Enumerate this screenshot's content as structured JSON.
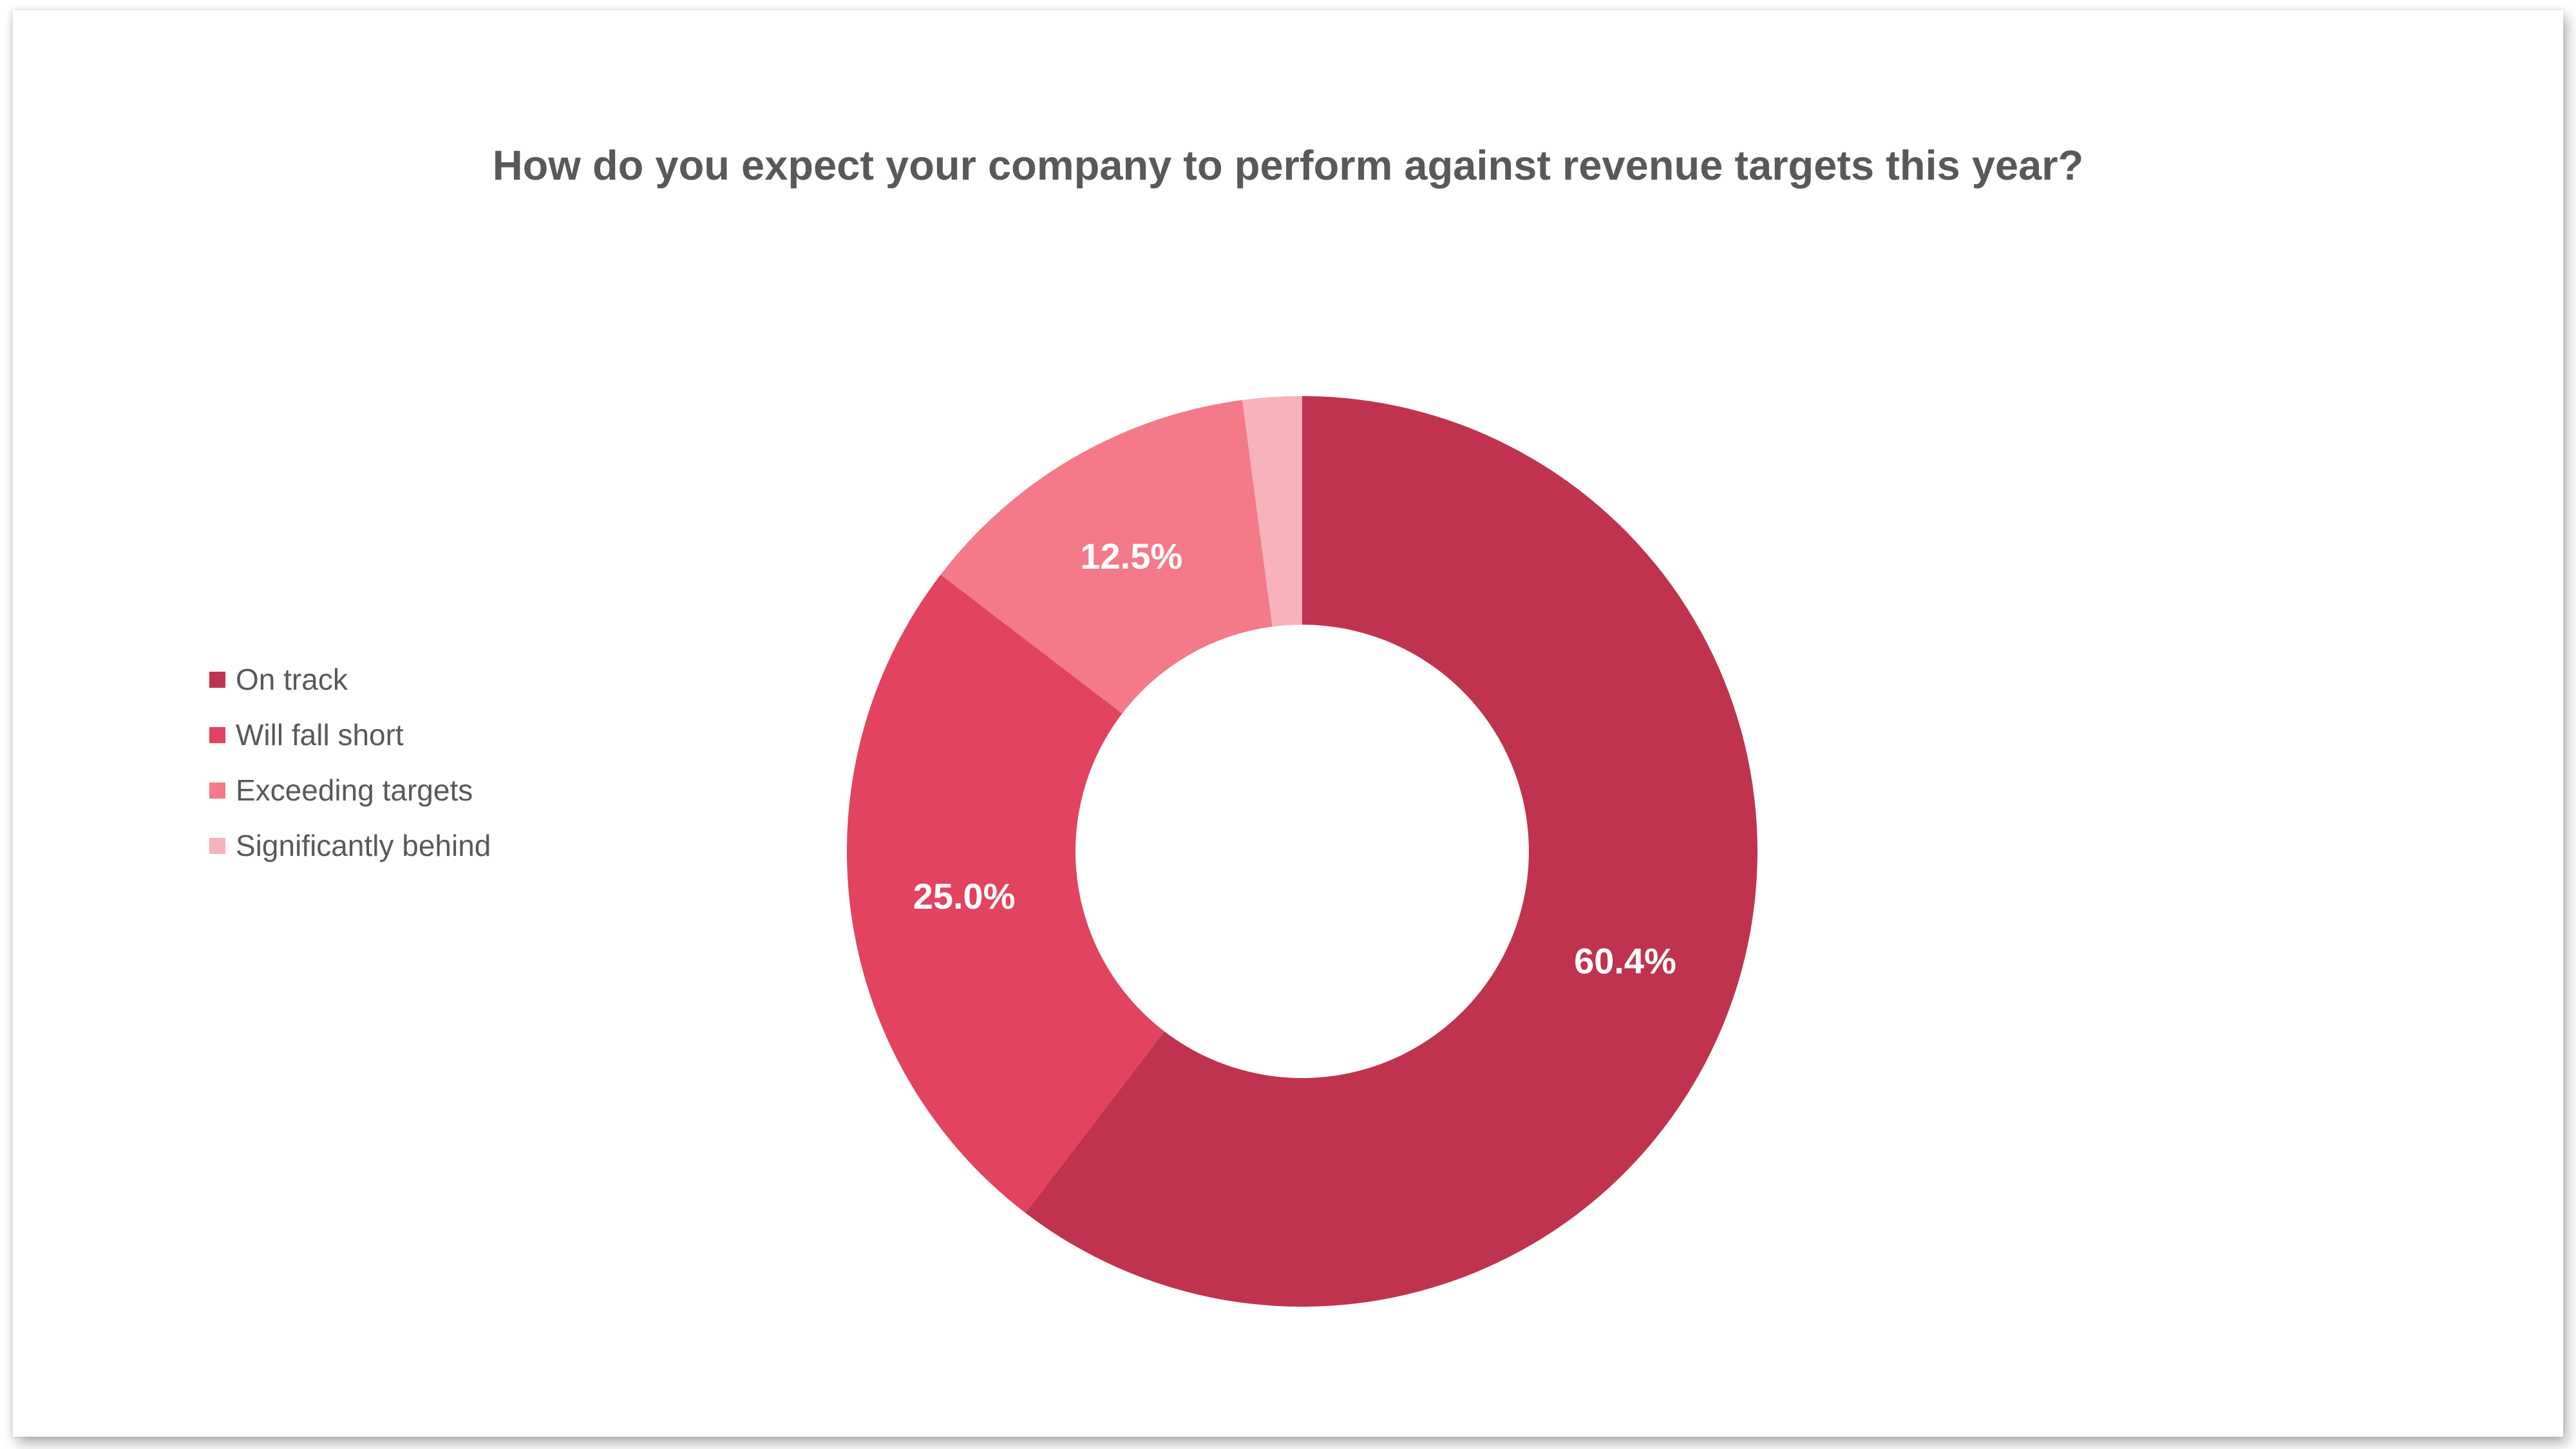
{
  "chart_data": {
    "type": "pie",
    "title": "How do you expect your company to perform against revenue targets this year?",
    "categories": [
      "On track",
      "Will fall short",
      "Exceeding targets",
      "Significantly behind"
    ],
    "values": [
      60.4,
      25.0,
      12.5,
      2.1
    ],
    "data_labels": [
      "60.4%",
      "25.0%",
      "12.5%",
      ""
    ],
    "colors": [
      "#C0334E",
      "#E2435F",
      "#F47A89",
      "#F8B2BA"
    ],
    "donut": true,
    "legend_position": "left"
  }
}
